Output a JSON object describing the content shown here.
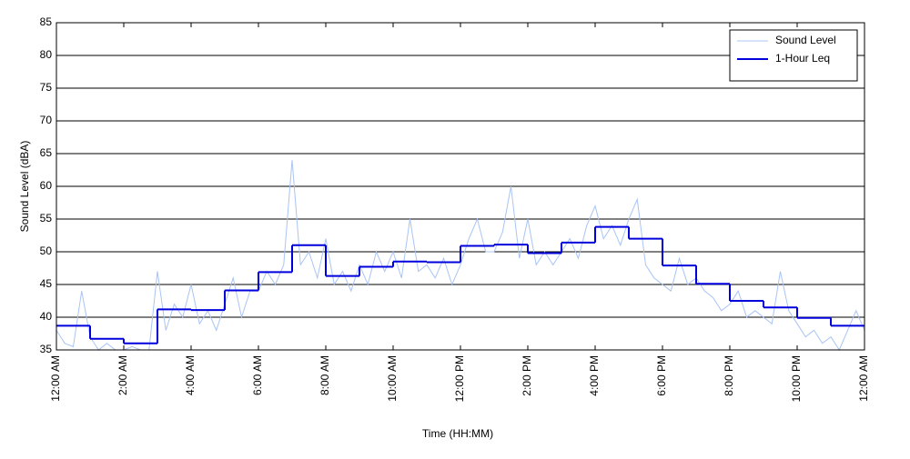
{
  "chart_data": {
    "type": "line",
    "xlabel": "Time (HH:MM)",
    "ylabel": "Sound Level (dBA)",
    "xlim": [
      0,
      24
    ],
    "xticks": [
      {
        "value": 0,
        "label": "12:00 AM"
      },
      {
        "value": 2,
        "label": "2:00 AM"
      },
      {
        "value": 4,
        "label": "4:00 AM"
      },
      {
        "value": 6,
        "label": "6:00 AM"
      },
      {
        "value": 8,
        "label": "8:00 AM"
      },
      {
        "value": 10,
        "label": "10:00 AM"
      },
      {
        "value": 12,
        "label": "12:00 PM"
      },
      {
        "value": 14,
        "label": "2:00 PM"
      },
      {
        "value": 16,
        "label": "4:00 PM"
      },
      {
        "value": 18,
        "label": "6:00 PM"
      },
      {
        "value": 20,
        "label": "8:00 PM"
      },
      {
        "value": 22,
        "label": "10:00 PM"
      },
      {
        "value": 24,
        "label": "12:00 AM"
      }
    ],
    "ylim": [
      35,
      85
    ],
    "yticks": [
      35,
      40,
      45,
      50,
      55,
      60,
      65,
      70,
      75,
      80,
      85
    ],
    "grid": true,
    "legend": "northeast",
    "series": [
      {
        "name": "Sound Level",
        "color": "#a9c4f5",
        "step": false,
        "x": [
          0,
          0.25,
          0.5,
          0.75,
          1,
          1.25,
          1.5,
          1.75,
          2,
          2.25,
          2.5,
          2.75,
          3,
          3.25,
          3.5,
          3.75,
          4,
          4.25,
          4.5,
          4.75,
          5,
          5.25,
          5.5,
          5.75,
          6,
          6.25,
          6.5,
          6.75,
          7,
          7.25,
          7.5,
          7.75,
          8,
          8.25,
          8.5,
          8.75,
          9,
          9.25,
          9.5,
          9.75,
          10,
          10.25,
          10.5,
          10.75,
          11,
          11.25,
          11.5,
          11.75,
          12,
          12.25,
          12.5,
          12.75,
          13,
          13.25,
          13.5,
          13.75,
          14,
          14.25,
          14.5,
          14.75,
          15,
          15.25,
          15.5,
          15.75,
          16,
          16.25,
          16.5,
          16.75,
          17,
          17.25,
          17.5,
          17.75,
          18,
          18.25,
          18.5,
          18.75,
          19,
          19.25,
          19.5,
          19.75,
          20,
          20.25,
          20.5,
          20.75,
          21,
          21.25,
          21.5,
          21.75,
          22,
          22.25,
          22.5,
          22.75,
          23,
          23.25,
          23.5,
          23.75,
          24
        ],
        "values": [
          38,
          36,
          35.5,
          44,
          37,
          35,
          36,
          35,
          35,
          35.5,
          35,
          35,
          47,
          38,
          42,
          40,
          45,
          39,
          41,
          38,
          42,
          46,
          40,
          44,
          44,
          47,
          45,
          48,
          64,
          48,
          50,
          46,
          52,
          45,
          47,
          44,
          48,
          45,
          50,
          47,
          50,
          46,
          55,
          47,
          48,
          46,
          49,
          45,
          48,
          52,
          55,
          50,
          50,
          53,
          60,
          49,
          55,
          48,
          50,
          48,
          50,
          52,
          49,
          54,
          57,
          52,
          54,
          51,
          55,
          58,
          48,
          46,
          45,
          44,
          49,
          45,
          46,
          44,
          43,
          41,
          42,
          44,
          40,
          41,
          40,
          39,
          47,
          41,
          39,
          37,
          38,
          36,
          37,
          35,
          38,
          41,
          38
        ]
      },
      {
        "name": "1-Hour Leq",
        "color": "#0000dd",
        "step": true,
        "x": [
          0,
          1,
          2,
          3,
          4,
          5,
          6,
          7,
          8,
          9,
          10,
          11,
          12,
          13,
          14,
          15,
          16,
          17,
          18,
          19,
          20,
          21,
          22,
          23
        ],
        "values": [
          38.7,
          36.7,
          36,
          41.2,
          41.1,
          44.1,
          46.9,
          51,
          46.3,
          47.7,
          48.5,
          48.4,
          50.9,
          51.1,
          49.8,
          51.4,
          53.8,
          52,
          47.9,
          45.1,
          42.5,
          41.5,
          39.9,
          38.7
        ]
      }
    ]
  }
}
